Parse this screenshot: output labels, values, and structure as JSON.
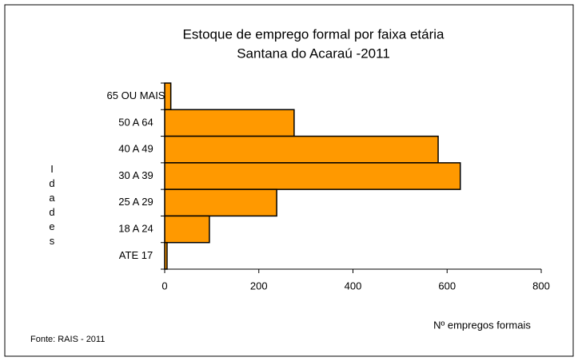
{
  "chart_data": {
    "type": "barh",
    "title": "Estoque de emprego formal por faixa etária",
    "subtitle": "Santana do Acaraú -2011",
    "categories": [
      "65 OU MAIS",
      "50 A 64",
      "40 A 49",
      "30 A 39",
      "25 A 29",
      "18 A 24",
      "ATE 17"
    ],
    "values": [
      13,
      275,
      581,
      628,
      238,
      95,
      5
    ],
    "color": "#ff9900",
    "xlim": [
      0,
      800
    ],
    "xticks": [
      0,
      200,
      400,
      600,
      800
    ],
    "xlabel": "Nº empregos formais",
    "ylabel": "Idades",
    "source": "Fonte: RAIS - 2011"
  }
}
